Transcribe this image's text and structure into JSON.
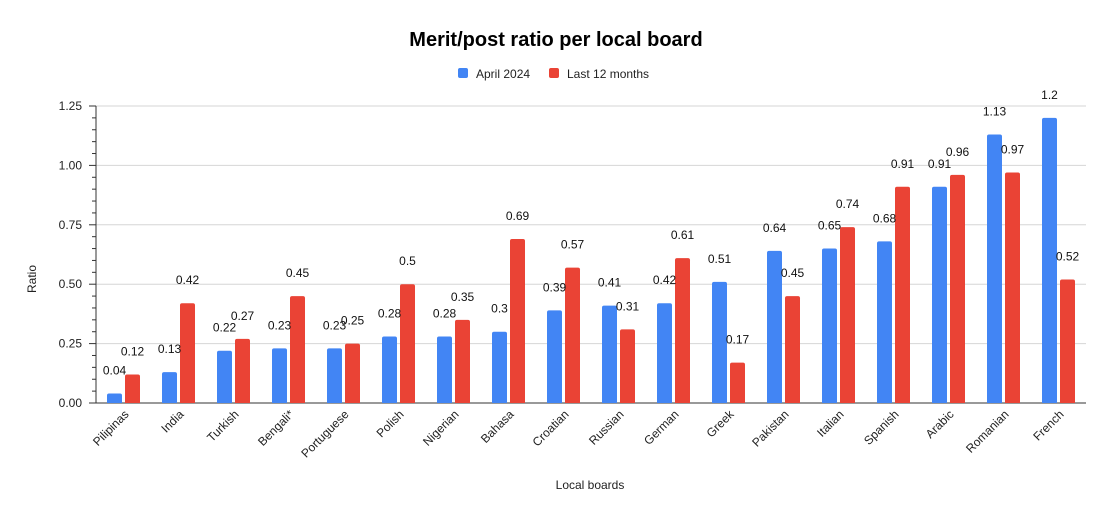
{
  "chart_data": {
    "type": "bar",
    "title": "Merit/post ratio per local board",
    "xlabel": "Local boards",
    "ylabel": "Ratio",
    "ylim": [
      0,
      1.25
    ],
    "yticks": [
      "0.00",
      "0.25",
      "0.50",
      "0.75",
      "1.00",
      "1.25"
    ],
    "grid": true,
    "legend_position": "top",
    "categories": [
      "Pilipinas",
      "India",
      "Turkish",
      "Bengali*",
      "Portuguese",
      "Polish",
      "Nigerian",
      "Bahasa",
      "Croatian",
      "Russian",
      "German",
      "Greek",
      "Pakistan",
      "Italian",
      "Spanish",
      "Arabic",
      "Romanian",
      "French"
    ],
    "series": [
      {
        "name": "April 2024",
        "color": "#4285f4",
        "values": [
          0.04,
          0.13,
          0.22,
          0.23,
          0.23,
          0.28,
          0.28,
          0.3,
          0.39,
          0.41,
          0.42,
          0.51,
          0.64,
          0.65,
          0.68,
          0.91,
          1.13,
          1.2
        ],
        "labels": [
          "0.04",
          "0.13",
          "0.22",
          "0.23",
          "0.23",
          "0.28",
          "0.28",
          "0.3",
          "0.39",
          "0.41",
          "0.42",
          "0.51",
          "0.64",
          "0.65",
          "0.68",
          "0.91",
          "1.13",
          "1.2"
        ]
      },
      {
        "name": "Last 12 months",
        "color": "#ea4335",
        "values": [
          0.12,
          0.42,
          0.27,
          0.45,
          0.25,
          0.5,
          0.35,
          0.69,
          0.57,
          0.31,
          0.61,
          0.17,
          0.45,
          0.74,
          0.91,
          0.96,
          0.97,
          0.52
        ],
        "labels": [
          "0.12",
          "0.42",
          "0.27",
          "0.45",
          "0.25",
          "0.5",
          "0.35",
          "0.69",
          "0.57",
          "0.31",
          "0.61",
          "0.17",
          "0.45",
          "0.74",
          "0.91",
          "0.96",
          "0.97",
          "0.52"
        ]
      }
    ]
  }
}
